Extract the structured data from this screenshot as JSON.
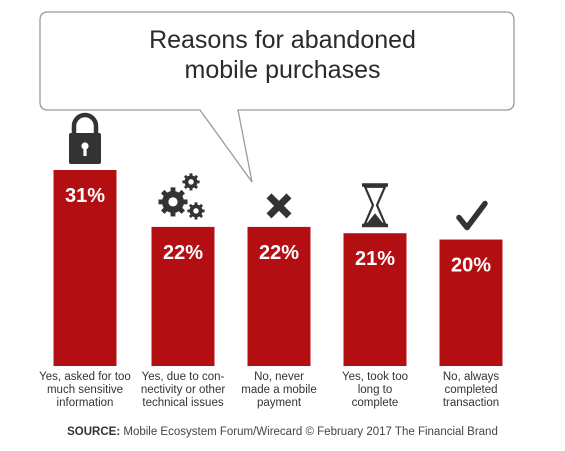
{
  "chart_data": {
    "type": "bar",
    "title": "Reasons for abandoned\nmobile purchases",
    "categories": [
      "Yes, asked for too\nmuch sensitive\ninformation",
      "Yes, due to con-\nnectivity or other\ntechnical issues",
      "No, never\nmade a mobile\npayment",
      "Yes, took too\nlong to\ncomplete",
      "No, always\ncompleted\ntransaction"
    ],
    "values": [
      31,
      22,
      22,
      21,
      20
    ],
    "value_labels": [
      "31%",
      "22%",
      "22%",
      "21%",
      "20%"
    ],
    "icons": [
      "lock-icon",
      "gears-icon",
      "x-icon",
      "hourglass-icon",
      "checkmark-icon"
    ],
    "bar_color": "#b30f12",
    "label_color": "#ffffff",
    "ylim": [
      0,
      31
    ],
    "grid": false,
    "legend": "none"
  },
  "source": {
    "prefix": "SOURCE:",
    "text": "Mobile Ecosystem Forum/Wirecard © February 2017 The Financial Brand"
  }
}
